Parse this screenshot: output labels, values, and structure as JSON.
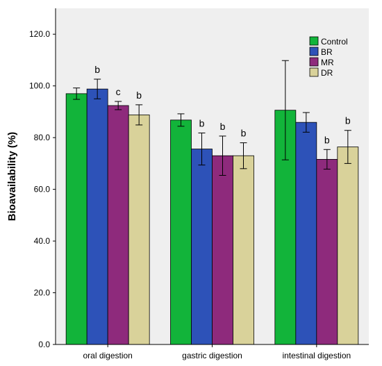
{
  "chart_data": {
    "type": "bar",
    "title": "",
    "xlabel": "",
    "ylabel": "Bioavailability (%)",
    "ylim": [
      0,
      130
    ],
    "yticks": [
      "0.0",
      "20.0",
      "40.0",
      "60.0",
      "80.0",
      "100.0",
      "120.0"
    ],
    "categories": [
      "oral digestion",
      "gastric digestion",
      "intestinal digestion"
    ],
    "legend_position": "top-right",
    "grid": false,
    "series": [
      {
        "name": "Control",
        "color": "#12b43a",
        "values": [
          97.0,
          86.8,
          90.6
        ],
        "error": [
          2.2,
          2.4,
          19.2
        ],
        "sig": [
          "",
          "",
          ""
        ]
      },
      {
        "name": "BR",
        "color": "#2d52b8",
        "values": [
          98.8,
          75.6,
          85.9
        ],
        "error": [
          3.8,
          6.2,
          3.8
        ],
        "sig": [
          "b",
          "b",
          ""
        ]
      },
      {
        "name": "MR",
        "color": "#8e2a7c",
        "values": [
          92.4,
          73.0,
          71.6
        ],
        "error": [
          1.6,
          7.6,
          3.8
        ],
        "sig": [
          "c",
          "b",
          "b"
        ]
      },
      {
        "name": "DR",
        "color": "#d9d29a",
        "values": [
          88.8,
          73.0,
          76.4
        ],
        "error": [
          3.9,
          5.0,
          6.4
        ],
        "sig": [
          "b",
          "b",
          "b"
        ]
      }
    ]
  }
}
